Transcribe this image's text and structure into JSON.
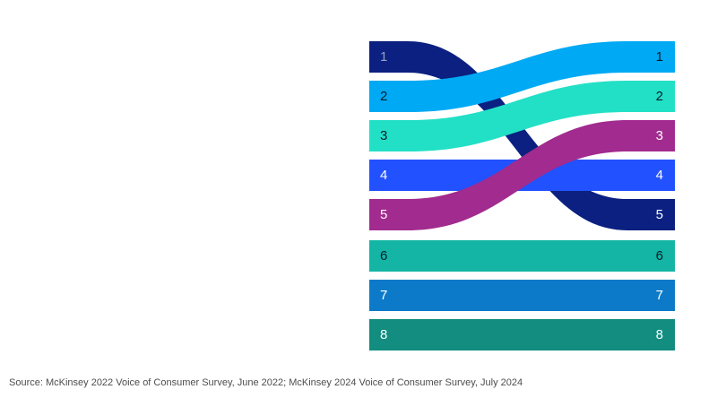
{
  "source_note": "Source: McKinsey 2022 Voice of Consumer Survey, June 2022; McKinsey 2024 Voice of Consumer Survey, July 2024",
  "chart_data": {
    "type": "line",
    "subtype": "ranking-bump-flow",
    "description": "Ranked items flowing from left (2022 rank) to right (2024 rank); ranks shown as numbered ribbons",
    "left_rank_labels": [
      "1",
      "2",
      "3",
      "4",
      "5",
      "6",
      "7",
      "8"
    ],
    "right_rank_labels": [
      "1",
      "2",
      "3",
      "4",
      "5",
      "6",
      "7",
      "8"
    ],
    "links": [
      {
        "from": 1,
        "to": 5,
        "color": "#0B2080",
        "left_text_color": "#96A1C6",
        "right_text_color": "#FFFFFF"
      },
      {
        "from": 2,
        "to": 1,
        "color": "#00A9F4",
        "left_text_color": "#051C2C",
        "right_text_color": "#051C2C"
      },
      {
        "from": 3,
        "to": 2,
        "color": "#22E0C6",
        "left_text_color": "#051C2C",
        "right_text_color": "#051C2C"
      },
      {
        "from": 4,
        "to": 4,
        "color": "#2251FF",
        "left_text_color": "#FFFFFF",
        "right_text_color": "#FFFFFF"
      },
      {
        "from": 5,
        "to": 3,
        "color": "#A12B8E",
        "left_text_color": "#FFFFFF",
        "right_text_color": "#FFFFFF"
      },
      {
        "from": 6,
        "to": 6,
        "color": "#14B5A4",
        "left_text_color": "#051C2C",
        "right_text_color": "#051C2C"
      },
      {
        "from": 7,
        "to": 7,
        "color": "#0C7AC8",
        "left_text_color": "#FFFFFF",
        "right_text_color": "#FFFFFF"
      },
      {
        "from": 8,
        "to": 8,
        "color": "#128D80",
        "left_text_color": "#FFFFFF",
        "right_text_color": "#FFFFFF"
      }
    ],
    "axis": {
      "rank_min": 1,
      "rank_max": 8,
      "gridlines": false,
      "legend": "none"
    }
  }
}
